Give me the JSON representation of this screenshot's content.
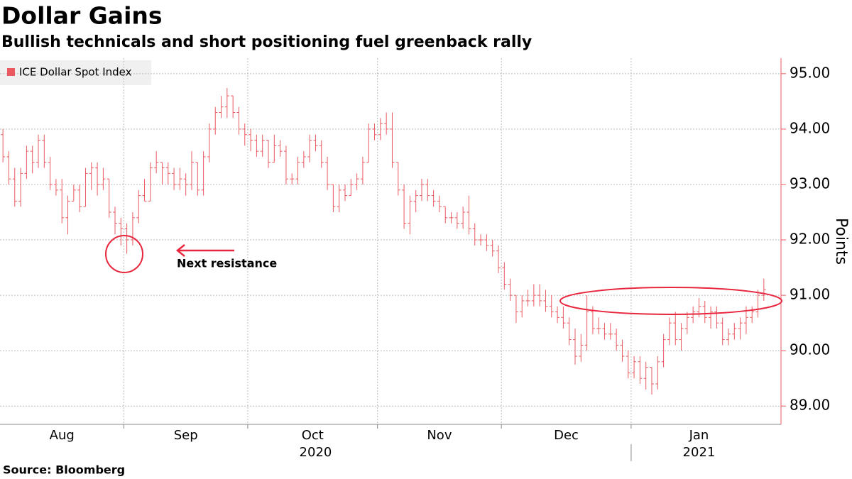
{
  "chart_data": {
    "type": "ohlc",
    "title": "Dollar Gains",
    "subtitle": "Bullish technicals and short positioning fuel greenback rally",
    "y_axis_label": "Points",
    "source": "Source: Bloomberg",
    "ylim": [
      88.67,
      95.28
    ],
    "yticks": [
      {
        "value": 89,
        "label": "89.00"
      },
      {
        "value": 90,
        "label": "90.00"
      },
      {
        "value": 91,
        "label": "91.00"
      },
      {
        "value": 92,
        "label": "92.00"
      },
      {
        "value": 93,
        "label": "93.00"
      },
      {
        "value": 94,
        "label": "94.00"
      },
      {
        "value": 95,
        "label": "95.00"
      }
    ],
    "grid": true,
    "legend_position": "top-left",
    "categories": [
      "Aug",
      null,
      null,
      null,
      null,
      null,
      null,
      null,
      null,
      null,
      null,
      null,
      null,
      null,
      null,
      null,
      null,
      null,
      null,
      null,
      null,
      "Sep",
      null,
      null,
      null,
      null,
      null,
      null,
      null,
      null,
      null,
      null,
      null,
      null,
      null,
      null,
      null,
      null,
      null,
      null,
      null,
      null,
      "Oct",
      null,
      null,
      null,
      null,
      null,
      null,
      null,
      null,
      null,
      null,
      null,
      null,
      null,
      null,
      null,
      null,
      null,
      null,
      null,
      null,
      null,
      "Nov",
      null,
      null,
      null,
      null,
      null,
      null,
      null,
      null,
      null,
      null,
      null,
      null,
      null,
      null,
      null,
      null,
      null,
      null,
      null,
      null,
      "Dec",
      null,
      null,
      null,
      null,
      null,
      null,
      null,
      null,
      null,
      null,
      null,
      null,
      null,
      null,
      null,
      null,
      null,
      null,
      null,
      null,
      null,
      "Jan",
      null,
      null,
      null,
      null,
      null,
      null,
      null,
      null,
      null,
      null,
      null,
      null,
      null,
      null,
      null,
      null,
      null,
      null,
      null,
      null,
      null,
      null
    ],
    "year_categories": [
      "2020",
      null,
      null,
      null,
      null,
      null,
      null,
      null,
      null,
      null,
      null,
      null,
      null,
      null,
      null,
      null,
      null,
      null,
      null,
      null,
      null,
      null,
      null,
      null,
      null,
      null,
      null,
      null,
      null,
      null,
      null,
      null,
      null,
      null,
      null,
      null,
      null,
      null,
      null,
      null,
      null,
      null,
      null,
      null,
      null,
      null,
      null,
      null,
      null,
      null,
      null,
      null,
      null,
      null,
      null,
      null,
      null,
      null,
      null,
      null,
      null,
      null,
      null,
      null,
      null,
      null,
      null,
      null,
      null,
      null,
      null,
      null,
      null,
      null,
      null,
      null,
      null,
      null,
      null,
      null,
      null,
      null,
      null,
      null,
      null,
      null,
      null,
      null,
      null,
      null,
      null,
      null,
      null,
      null,
      null,
      null,
      null,
      null,
      null,
      null,
      null,
      null,
      null,
      null,
      null,
      null,
      null,
      "2021",
      null,
      null,
      null,
      null,
      null,
      null,
      null,
      null,
      null,
      null,
      null,
      null,
      null,
      null,
      null,
      null,
      null,
      null,
      null,
      null,
      null,
      null
    ],
    "series": [
      {
        "name": "ICE Dollar Spot Index",
        "color": "#ea5a60",
        "ohlc": [
          [
            93.9,
            94.0,
            93.4,
            93.5
          ],
          [
            93.5,
            93.6,
            93.0,
            93.1
          ],
          [
            93.1,
            93.3,
            92.6,
            92.7
          ],
          [
            92.7,
            93.3,
            92.6,
            93.2
          ],
          [
            93.2,
            93.7,
            93.1,
            93.6
          ],
          [
            93.6,
            93.7,
            93.2,
            93.4
          ],
          [
            93.4,
            93.9,
            93.3,
            93.8
          ],
          [
            93.8,
            93.9,
            93.3,
            93.4
          ],
          [
            93.4,
            93.5,
            92.9,
            93.0
          ],
          [
            93.0,
            93.1,
            92.8,
            92.9
          ],
          [
            92.9,
            93.1,
            92.3,
            92.4
          ],
          [
            92.4,
            92.8,
            92.1,
            92.7
          ],
          [
            92.7,
            93.0,
            92.7,
            92.9
          ],
          [
            92.9,
            93.0,
            92.5,
            92.6
          ],
          [
            92.6,
            93.3,
            92.6,
            93.2
          ],
          [
            93.2,
            93.4,
            92.9,
            93.3
          ],
          [
            93.3,
            93.4,
            92.8,
            93.0
          ],
          [
            93.0,
            93.3,
            92.9,
            93.1
          ],
          [
            93.1,
            93.1,
            92.4,
            92.5
          ],
          [
            92.5,
            92.6,
            92.1,
            92.3
          ],
          [
            92.3,
            92.4,
            91.9,
            92.2
          ],
          [
            92.2,
            92.3,
            91.75,
            92.0
          ],
          [
            92.0,
            92.5,
            91.9,
            92.4
          ],
          [
            92.4,
            92.9,
            92.3,
            92.8
          ],
          [
            92.8,
            93.1,
            92.7,
            92.7
          ],
          [
            92.7,
            93.4,
            92.7,
            93.3
          ],
          [
            93.3,
            93.6,
            93.2,
            93.4
          ],
          [
            93.4,
            93.4,
            93.0,
            93.3
          ],
          [
            93.3,
            93.4,
            93.0,
            93.2
          ],
          [
            93.2,
            93.3,
            92.9,
            93.0
          ],
          [
            93.0,
            93.3,
            92.9,
            93.1
          ],
          [
            93.1,
            93.2,
            92.8,
            93.0
          ],
          [
            93.0,
            93.6,
            92.9,
            93.4
          ],
          [
            93.4,
            93.4,
            92.8,
            92.9
          ],
          [
            92.9,
            93.6,
            92.8,
            93.5
          ],
          [
            93.5,
            94.1,
            93.4,
            94.0
          ],
          [
            94.0,
            94.4,
            93.9,
            94.3
          ],
          [
            94.3,
            94.6,
            94.2,
            94.4
          ],
          [
            94.4,
            94.74,
            94.2,
            94.6
          ],
          [
            94.6,
            94.6,
            94.2,
            94.3
          ],
          [
            94.3,
            94.4,
            93.9,
            94.0
          ],
          [
            94.0,
            94.1,
            93.7,
            93.9
          ],
          [
            93.9,
            94.0,
            93.6,
            93.8
          ],
          [
            93.8,
            93.9,
            93.5,
            93.6
          ],
          [
            93.6,
            93.9,
            93.5,
            93.8
          ],
          [
            93.8,
            93.8,
            93.3,
            93.4
          ],
          [
            93.4,
            93.9,
            93.4,
            93.7
          ],
          [
            93.7,
            93.8,
            93.5,
            93.6
          ],
          [
            93.6,
            93.7,
            93.0,
            93.1
          ],
          [
            93.1,
            93.2,
            93.0,
            93.1
          ],
          [
            93.1,
            93.5,
            93.0,
            93.4
          ],
          [
            93.4,
            93.6,
            93.3,
            93.5
          ],
          [
            93.5,
            93.9,
            93.4,
            93.8
          ],
          [
            93.8,
            93.9,
            93.6,
            93.7
          ],
          [
            93.7,
            93.8,
            93.3,
            93.4
          ],
          [
            93.4,
            93.5,
            92.9,
            93.0
          ],
          [
            93.0,
            93.0,
            92.5,
            92.6
          ],
          [
            92.6,
            93.0,
            92.5,
            92.9
          ],
          [
            92.9,
            93.0,
            92.7,
            92.8
          ],
          [
            92.8,
            93.1,
            92.8,
            93.0
          ],
          [
            93.0,
            93.2,
            92.9,
            93.1
          ],
          [
            93.1,
            93.5,
            93.0,
            93.4
          ],
          [
            93.4,
            94.1,
            93.4,
            94.0
          ],
          [
            94.0,
            94.1,
            93.8,
            93.9
          ],
          [
            93.9,
            94.2,
            93.8,
            94.1
          ],
          [
            94.1,
            94.3,
            93.9,
            94.0
          ],
          [
            94.0,
            94.3,
            93.3,
            93.4
          ],
          [
            93.4,
            93.4,
            92.8,
            92.9
          ],
          [
            92.9,
            93.0,
            92.2,
            92.3
          ],
          [
            92.3,
            92.8,
            92.1,
            92.7
          ],
          [
            92.7,
            92.9,
            92.5,
            92.8
          ],
          [
            92.8,
            93.1,
            92.7,
            93.0
          ],
          [
            93.0,
            93.1,
            92.7,
            92.8
          ],
          [
            92.8,
            92.9,
            92.6,
            92.7
          ],
          [
            92.7,
            92.8,
            92.5,
            92.6
          ],
          [
            92.6,
            92.6,
            92.3,
            92.4
          ],
          [
            92.4,
            92.5,
            92.3,
            92.4
          ],
          [
            92.4,
            92.5,
            92.2,
            92.3
          ],
          [
            92.3,
            92.6,
            92.2,
            92.5
          ],
          [
            92.5,
            92.8,
            92.1,
            92.2
          ],
          [
            92.2,
            92.3,
            91.9,
            92.0
          ],
          [
            92.0,
            92.1,
            91.9,
            92.0
          ],
          [
            92.0,
            92.1,
            91.8,
            91.9
          ],
          [
            91.9,
            92.0,
            91.7,
            91.8
          ],
          [
            91.8,
            91.9,
            91.4,
            91.5
          ],
          [
            91.5,
            91.6,
            91.1,
            91.2
          ],
          [
            91.2,
            91.3,
            90.9,
            91.0
          ],
          [
            91.0,
            91.0,
            90.5,
            90.7
          ],
          [
            90.7,
            91.0,
            90.6,
            90.9
          ],
          [
            90.9,
            91.1,
            90.8,
            90.9
          ],
          [
            90.9,
            91.2,
            90.8,
            91.0
          ],
          [
            91.0,
            91.2,
            90.8,
            90.9
          ],
          [
            90.9,
            91.1,
            90.7,
            90.8
          ],
          [
            90.8,
            91.0,
            90.6,
            90.7
          ],
          [
            90.7,
            90.8,
            90.5,
            90.6
          ],
          [
            90.6,
            90.8,
            90.4,
            90.5
          ],
          [
            90.5,
            90.6,
            90.1,
            90.2
          ],
          [
            90.2,
            90.4,
            89.75,
            89.9
          ],
          [
            89.9,
            90.3,
            89.8,
            90.1
          ],
          [
            90.1,
            91.0,
            90.0,
            90.7
          ],
          [
            90.7,
            90.8,
            90.3,
            90.4
          ],
          [
            90.4,
            90.6,
            90.3,
            90.4
          ],
          [
            90.4,
            90.5,
            90.2,
            90.3
          ],
          [
            90.3,
            90.5,
            90.2,
            90.3
          ],
          [
            90.3,
            90.4,
            90.0,
            90.1
          ],
          [
            90.1,
            90.2,
            89.8,
            89.9
          ],
          [
            89.9,
            90.0,
            89.5,
            89.6
          ],
          [
            89.6,
            89.9,
            89.5,
            89.8
          ],
          [
            89.8,
            89.9,
            89.4,
            89.5
          ],
          [
            89.5,
            89.8,
            89.3,
            89.7
          ],
          [
            89.7,
            89.7,
            89.21,
            89.4
          ],
          [
            89.4,
            89.9,
            89.3,
            89.8
          ],
          [
            89.8,
            90.3,
            89.7,
            90.2
          ],
          [
            90.2,
            90.6,
            90.1,
            90.5
          ],
          [
            90.5,
            90.7,
            90.1,
            90.2
          ],
          [
            90.2,
            90.5,
            90.0,
            90.4
          ],
          [
            90.4,
            90.7,
            90.3,
            90.6
          ],
          [
            90.6,
            90.8,
            90.5,
            90.7
          ],
          [
            90.7,
            90.95,
            90.6,
            90.8
          ],
          [
            90.8,
            90.9,
            90.5,
            90.6
          ],
          [
            90.6,
            90.8,
            90.4,
            90.7
          ],
          [
            90.7,
            90.8,
            90.4,
            90.5
          ],
          [
            90.5,
            90.6,
            90.1,
            90.2
          ],
          [
            90.2,
            90.4,
            90.1,
            90.3
          ],
          [
            90.3,
            90.5,
            90.2,
            90.4
          ],
          [
            90.4,
            90.6,
            90.2,
            90.5
          ],
          [
            90.5,
            90.8,
            90.3,
            90.6
          ],
          [
            90.6,
            90.8,
            90.5,
            90.7
          ],
          [
            90.7,
            91.1,
            90.6,
            91.0
          ],
          [
            91.0,
            91.3,
            90.9,
            91.1
          ]
        ]
      }
    ],
    "annotations": [
      {
        "text": "Next resistance",
        "color": "#e8273f"
      }
    ]
  }
}
